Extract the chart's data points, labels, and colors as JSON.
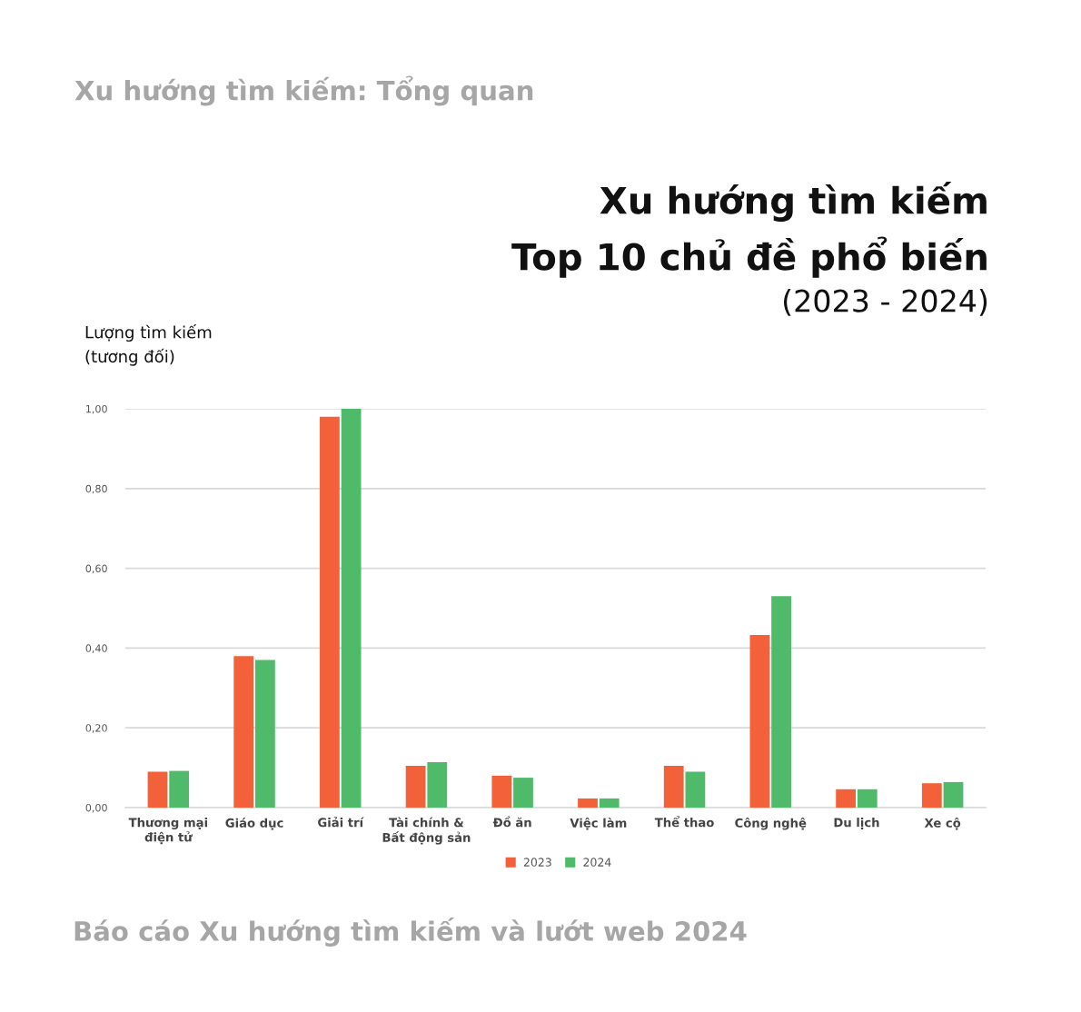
{
  "chart_data": {
    "type": "bar",
    "title": "Xu hướng tìm kiếm\nTop 10 chủ đề phổ biến",
    "subtitle": "(2023 - 2024)",
    "ylabel": "Lượng tìm kiếm\n(tương đối)",
    "annotations": [
      "Xu hướng tìm kiếm: Tổng quan",
      "Báo cáo Xu hướng tìm kiếm và lướt web 2024"
    ],
    "categories": [
      "Thương mại\nđiện tử",
      "Giáo dục",
      "Giải trí",
      "Tài chính &\nBất động sản",
      "Đồ ăn",
      "Việc làm",
      "Thể thao",
      "Công nghệ",
      "Du lịch",
      "Xe cộ"
    ],
    "series": [
      {
        "name": "2023",
        "color": "#f26139",
        "values": [
          0.09,
          0.38,
          0.98,
          0.105,
          0.08,
          0.023,
          0.105,
          0.433,
          0.046,
          0.061
        ]
      },
      {
        "name": "2024",
        "color": "#4fba6a",
        "values": [
          0.092,
          0.37,
          1.0,
          0.114,
          0.075,
          0.023,
          0.09,
          0.53,
          0.046,
          0.064
        ]
      }
    ],
    "ylim": [
      0,
      1.0
    ],
    "yticks": [
      {
        "value": 0,
        "label": "0,00"
      },
      {
        "value": 0.2,
        "label": "0,20"
      },
      {
        "value": 0.4,
        "label": "0,40"
      },
      {
        "value": 0.6,
        "label": "0,60"
      },
      {
        "value": 0.8,
        "label": "0,80"
      },
      {
        "value": 1.0,
        "label": "1,00"
      }
    ],
    "grid": "y",
    "legend": "bottom"
  }
}
